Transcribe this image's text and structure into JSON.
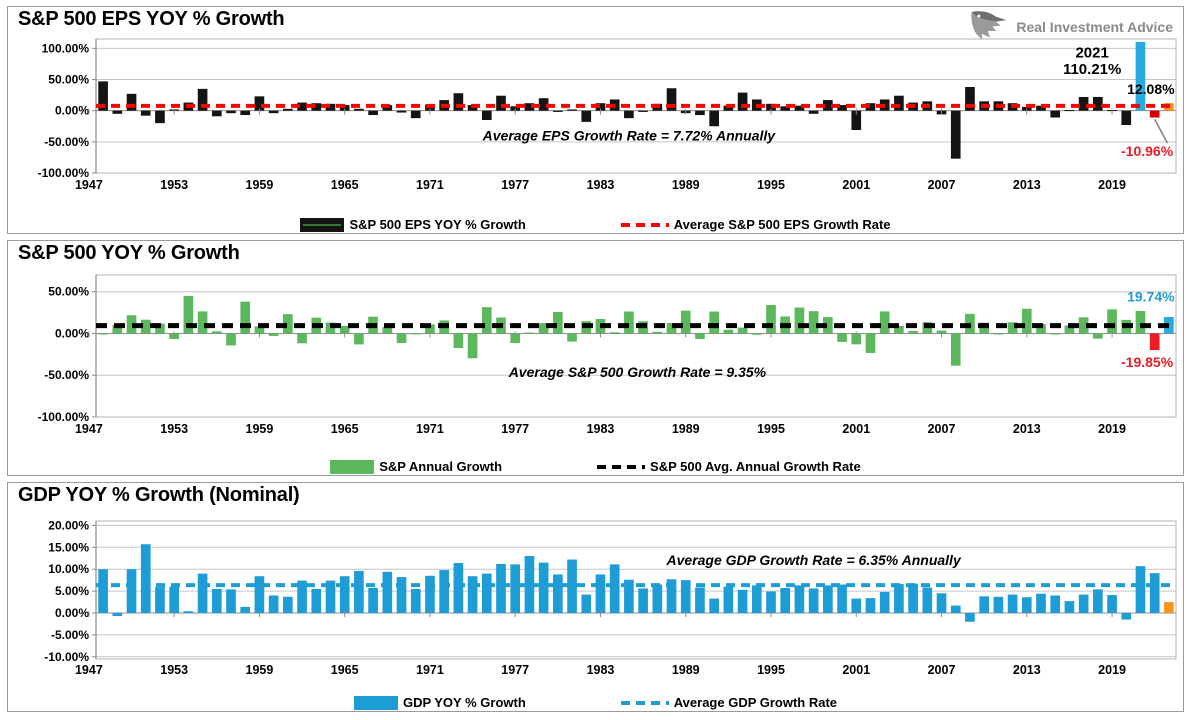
{
  "logo": {
    "text": "Real Investment Advice"
  },
  "chart_data": [
    {
      "type": "bar",
      "title": "S&P 500 EPS YOY % Growth",
      "years_start": 1948,
      "values": [
        47,
        -5,
        27,
        -8,
        -20,
        2,
        13,
        35,
        -9,
        -4,
        -7,
        23,
        -4,
        3,
        13,
        12,
        11,
        9,
        3,
        -7,
        9,
        -3,
        -12,
        10,
        17,
        28,
        9,
        -15,
        24,
        7,
        12,
        20,
        -2,
        2,
        -18,
        12,
        18,
        -12,
        -2,
        11,
        36,
        -4,
        -7,
        -25,
        8,
        29,
        18,
        11,
        7,
        8,
        -5,
        17,
        9,
        -31,
        12,
        18,
        24,
        13,
        15,
        -6,
        -77,
        38,
        15,
        15,
        12,
        6,
        8,
        -11,
        1,
        22,
        22,
        1,
        -23,
        110.21,
        -10.96,
        12.08
      ],
      "ymax": 115,
      "ymin": -100,
      "yticks": [
        100,
        50,
        0,
        -50,
        -100
      ],
      "xticks": [
        1947,
        1953,
        1959,
        1965,
        1971,
        1977,
        1983,
        1989,
        1995,
        2001,
        2007,
        2013,
        2019
      ],
      "bar_color_default": "#141414",
      "bar_colors": {
        "2021": "#29ABE2",
        "2022": "#D40000",
        "2023": "#F7941D"
      },
      "avg_line": {
        "value": 7.72,
        "color": "#FF0000"
      },
      "annotations": [
        {
          "text": "Average EPS Growth Rate = 7.72% Annually",
          "x_year": 1985,
          "y_val": -48,
          "color": "#000000",
          "anchor": "middle",
          "italic": true,
          "size": 14
        },
        {
          "text": "2021",
          "x_year": 2017.6,
          "y_val": 85,
          "color": "#000000",
          "anchor": "middle",
          "italic": false,
          "size": 15
        },
        {
          "text": "110.21%",
          "x_year": 2017.6,
          "y_val": 59,
          "color": "#000000",
          "anchor": "middle",
          "italic": false,
          "size": 15
        },
        {
          "text": "12.08%",
          "x_year": 2023.4,
          "y_val": 27,
          "color": "#000000",
          "anchor": "end",
          "italic": false,
          "size": 14
        },
        {
          "text": "-10.96%",
          "x_year": 2023.3,
          "y_val": -73,
          "color": "#ED1C24",
          "anchor": "end",
          "italic": false,
          "size": 14
        }
      ],
      "callout": {
        "x1_year": 2022,
        "y1_val": -14,
        "x2_year": 2022.9,
        "y2_val": -52,
        "color": "#808080"
      },
      "legend": [
        {
          "label": "S&P 500 EPS YOY % Growth",
          "swatch": "bar",
          "color": "#141414",
          "line_color": "#2E7D32"
        },
        {
          "label": "Average S&P 500 EPS Growth Rate",
          "swatch": "dash",
          "color": "#FF0000"
        }
      ]
    },
    {
      "type": "bar",
      "title": "S&P 500 YOY % Growth",
      "years_start": 1948,
      "values": [
        -0.7,
        10.3,
        21.8,
        16.5,
        11.8,
        -6.6,
        45.0,
        26.4,
        2.6,
        -14.3,
        38.1,
        8.5,
        -3.0,
        23.1,
        -11.8,
        18.9,
        13.0,
        9.1,
        -13.1,
        20.1,
        7.7,
        -11.4,
        0.1,
        10.8,
        15.6,
        -17.4,
        -29.7,
        31.5,
        19.1,
        -11.5,
        1.1,
        12.3,
        25.8,
        -9.7,
        14.8,
        17.3,
        1.4,
        26.3,
        14.6,
        2.0,
        12.4,
        27.3,
        -6.6,
        26.3,
        4.5,
        7.1,
        -1.5,
        34.1,
        20.3,
        31.0,
        26.7,
        19.5,
        -10.1,
        -13.0,
        -23.4,
        26.4,
        9.0,
        3.0,
        13.6,
        3.5,
        -38.5,
        23.5,
        12.8,
        0.0,
        13.4,
        29.6,
        11.4,
        -0.7,
        9.5,
        19.4,
        -6.2,
        28.9,
        16.3,
        26.9,
        -19.85,
        19.74
      ],
      "ymax": 70,
      "ymin": -100,
      "yticks": [
        50,
        0,
        -50,
        -100
      ],
      "xticks": [
        1947,
        1953,
        1959,
        1965,
        1971,
        1977,
        1983,
        1989,
        1995,
        2001,
        2007,
        2013,
        2019
      ],
      "bar_color_default": "#5CB85C",
      "bar_colors": {
        "2022": "#ED1C24",
        "2023": "#29ABE2"
      },
      "avg_line": {
        "value": 9.35,
        "color": "#000000"
      },
      "annotations": [
        {
          "text": "Average S&P 500 Growth Rate = 9.35%",
          "x_year": 1985.6,
          "y_val": -52,
          "color": "#000000",
          "anchor": "middle",
          "italic": true,
          "size": 14
        },
        {
          "text": "19.74%",
          "x_year": 2023.4,
          "y_val": 38,
          "color": "#1E9CD6",
          "anchor": "end",
          "italic": false,
          "size": 14
        },
        {
          "text": "-19.85%",
          "x_year": 2023.3,
          "y_val": -40,
          "color": "#ED1C24",
          "anchor": "end",
          "italic": false,
          "size": 14
        }
      ],
      "legend": [
        {
          "label": "S&P Annual Growth",
          "swatch": "bar",
          "color": "#5CB85C"
        },
        {
          "label": "S&P 500 Avg. Annual Growth Rate",
          "swatch": "dash",
          "color": "#000000"
        }
      ]
    },
    {
      "type": "bar",
      "title": "GDP YOY % Growth (Nominal)",
      "years_start": 1948,
      "values": [
        10.0,
        -0.7,
        10.0,
        15.7,
        5.9,
        6.0,
        0.4,
        9.0,
        5.5,
        5.4,
        1.4,
        8.4,
        4.0,
        3.7,
        7.4,
        5.5,
        7.4,
        8.4,
        9.6,
        5.7,
        9.4,
        8.2,
        5.5,
        8.5,
        9.8,
        11.4,
        8.4,
        9.0,
        11.2,
        11.1,
        13.0,
        11.5,
        8.8,
        12.2,
        4.2,
        8.8,
        11.1,
        7.6,
        5.6,
        6.5,
        7.7,
        7.5,
        5.8,
        3.3,
        6.0,
        5.3,
        6.3,
        4.9,
        5.7,
        6.3,
        5.6,
        6.3,
        6.5,
        3.3,
        3.4,
        4.8,
        6.6,
        6.7,
        5.8,
        4.5,
        1.7,
        -2.0,
        3.8,
        3.7,
        4.2,
        3.6,
        4.4,
        4.0,
        2.7,
        4.2,
        5.4,
        4.1,
        -1.5,
        10.7,
        9.1,
        2.5
      ],
      "ymax": 21,
      "ymin": -10.5,
      "yticks": [
        20,
        15,
        10,
        5,
        0,
        -5,
        -10
      ],
      "xticks": [
        1947,
        1953,
        1959,
        1965,
        1971,
        1977,
        1983,
        1989,
        1995,
        2001,
        2007,
        2013,
        2019
      ],
      "bar_color_default": "#1E9CD6",
      "bar_colors": {
        "2023": "#F7941D"
      },
      "avg_line": {
        "value": 6.35,
        "color": "#1E9CD6"
      },
      "annotations": [
        {
          "text": "Average GDP Growth Rate = 6.35% Annually",
          "x_year": 1998,
          "y_val": 11,
          "color": "#000000",
          "anchor": "middle",
          "italic": true,
          "size": 14
        }
      ],
      "legend": [
        {
          "label": "GDP YOY % Growth",
          "swatch": "bar",
          "color": "#1E9CD6"
        },
        {
          "label": "Average GDP Growth Rate",
          "swatch": "dash",
          "color": "#1E9CD6"
        }
      ]
    }
  ]
}
